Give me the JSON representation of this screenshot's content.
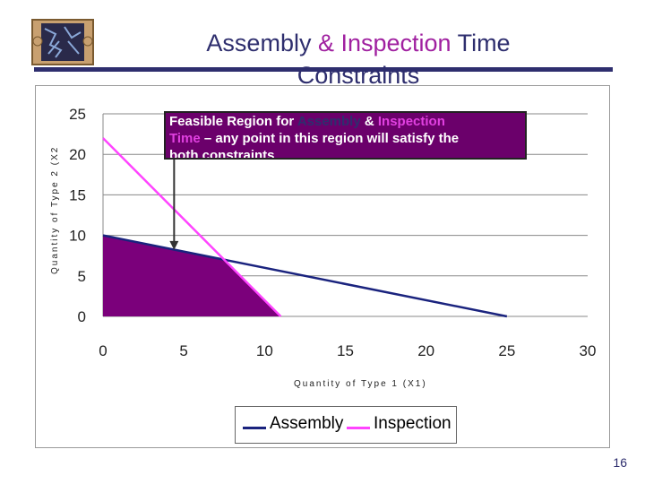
{
  "slide": {
    "title_part1": "Assembly",
    "title_part2": " & ",
    "title_part3": "Inspection",
    "title_part4": " Time",
    "title_line2": "Constraints",
    "page_number": "16",
    "logo_icon": "puzzle-logo-icon"
  },
  "callout": {
    "line1_a": "Feasible Region for ",
    "line1_b": "Assembly",
    "line1_c": " & ",
    "line1_d": "Inspection",
    "line2_a": "Time",
    "line2_b": " – any point in this region will satisfy the",
    "line3": "both constraints"
  },
  "chart_data": {
    "type": "line",
    "xlabel": "Quantity of Type 1 (X1)",
    "ylabel": "Quantity of Type 2 (X2",
    "xlim": [
      0,
      30
    ],
    "ylim": [
      0,
      25
    ],
    "x_ticks": [
      "0",
      "5",
      "10",
      "15",
      "20",
      "25",
      "30"
    ],
    "y_ticks": [
      "0",
      "5",
      "10",
      "15",
      "20",
      "25"
    ],
    "grid": "horizontal",
    "legend_position": "bottom",
    "series": [
      {
        "name": "Assembly",
        "color": "#1a237e",
        "points": [
          [
            0,
            10
          ],
          [
            25,
            0
          ]
        ]
      },
      {
        "name": "Inspection",
        "color": "#ff44ff",
        "points": [
          [
            0,
            22
          ],
          [
            11,
            0
          ]
        ]
      }
    ],
    "feasible_region": {
      "color": "#7b007b",
      "points": [
        [
          0,
          0
        ],
        [
          0,
          10
        ],
        [
          7.47,
          7.01
        ],
        [
          11,
          0
        ]
      ]
    },
    "annotation_arrow": {
      "to": [
        4.4,
        8.2
      ]
    }
  }
}
